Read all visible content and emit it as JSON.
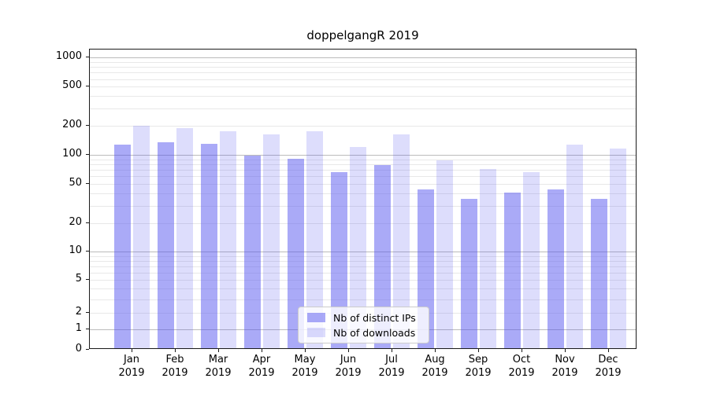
{
  "chart_data": {
    "type": "bar",
    "title": "doppelgangR 2019",
    "categories": [
      "Jan 2019",
      "Feb 2019",
      "Mar 2019",
      "Apr 2019",
      "May 2019",
      "Jun 2019",
      "Jul 2019",
      "Aug 2019",
      "Sep 2019",
      "Oct 2019",
      "Nov 2019",
      "Dec 2019"
    ],
    "series": [
      {
        "name": "Nb of distinct IPs",
        "values": [
          127,
          135,
          129,
          98,
          91,
          66,
          78,
          44,
          35,
          41,
          44,
          35
        ]
      },
      {
        "name": "Nb of downloads",
        "values": [
          198,
          188,
          176,
          161,
          176,
          121,
          163,
          88,
          72,
          66,
          128,
          117
        ]
      }
    ],
    "yticks": [
      0,
      1,
      2,
      5,
      10,
      20,
      50,
      100,
      200,
      500,
      1000
    ],
    "ylim": [
      0,
      1000
    ],
    "yscale": "pseudo-log (asinh)",
    "grid": "horizontal major+minor",
    "legend_position": "lower center"
  },
  "colors": {
    "distinct_ips_bar": "rgba(85,85,240,0.5)",
    "downloads_bar": "rgba(85,85,240,0.2)",
    "grid_major": "#bbbbbb",
    "grid_minor": "#e8e8e8",
    "spine": "#1a1a1a",
    "legend_border": "#cccccc"
  }
}
